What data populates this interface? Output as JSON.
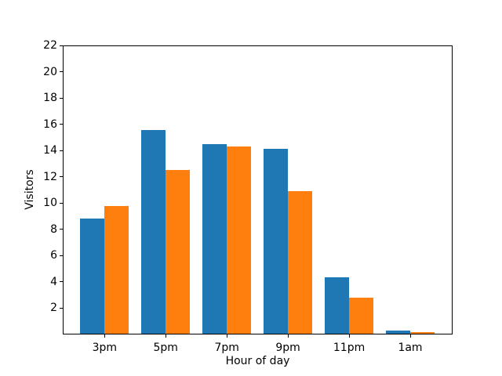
{
  "chart_data": {
    "type": "bar",
    "title": "",
    "xlabel": "Hour of day",
    "ylabel": "Visitors",
    "categories": [
      "3pm",
      "5pm",
      "7pm",
      "9pm",
      "11pm",
      "1am"
    ],
    "series": [
      {
        "name": "blue",
        "color": "#1f77b4",
        "values": [
          8.8,
          15.55,
          14.5,
          14.15,
          4.35,
          0.3
        ]
      },
      {
        "name": "orange",
        "color": "#ff7f0e",
        "values": [
          9.8,
          12.55,
          14.3,
          10.9,
          2.8,
          0.2
        ]
      }
    ],
    "ylim": [
      0,
      22
    ],
    "yticks": [
      2,
      4,
      6,
      8,
      10,
      12,
      14,
      16,
      18,
      20,
      22
    ],
    "grid": false,
    "legend_position": "none",
    "background": "#ffffff",
    "spine_color": "#000000"
  }
}
